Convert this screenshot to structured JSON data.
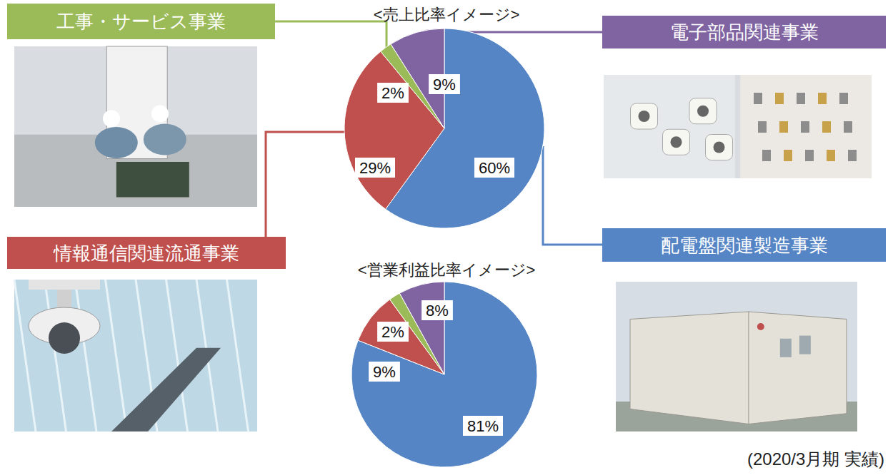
{
  "chart_data": [
    {
      "type": "pie",
      "title": "<売上比率イメージ>",
      "categories": [
        "配電盤関連製造事業",
        "情報通信関連流通事業",
        "工事・サービス事業",
        "電子部品関連事業"
      ],
      "values": [
        60,
        29,
        2,
        9
      ],
      "value_labels": [
        "60%",
        "29%",
        "2%",
        "9%"
      ],
      "colors": [
        "#5585c5",
        "#c0504d",
        "#9bbb59",
        "#8064a2"
      ],
      "data_labels": true
    },
    {
      "type": "pie",
      "title": "<営業利益比率イメージ>",
      "categories": [
        "配電盤関連製造事業",
        "情報通信関連流通事業",
        "工事・サービス事業",
        "電子部品関連事業"
      ],
      "values": [
        81,
        9,
        2,
        8
      ],
      "value_labels": [
        "81%",
        "9%",
        "2%",
        "8%"
      ],
      "colors": [
        "#5585c5",
        "#c0504d",
        "#9bbb59",
        "#8064a2"
      ],
      "data_labels": true
    }
  ],
  "footnote": "(2020/3月期 実績)"
}
